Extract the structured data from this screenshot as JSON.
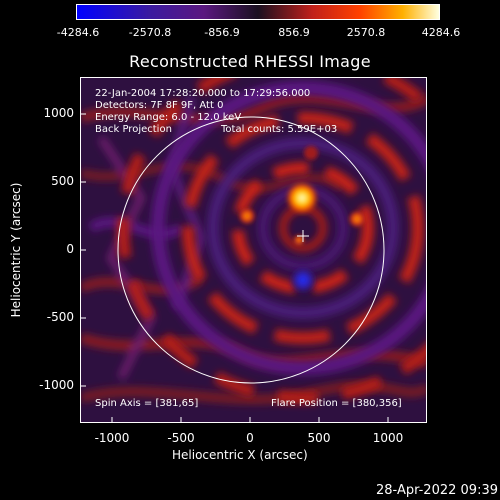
{
  "colorbar": {
    "ticks": [
      "-4284.6",
      "-2570.8",
      "-856.9",
      "856.9",
      "2570.8",
      "4284.6"
    ]
  },
  "title": "Reconstructed RHESSI Image",
  "info": {
    "line1": "22-Jan-2004 17:28:20.000 to 17:29:56.000",
    "line2": "Detectors: 7F 8F 9F, Att 0",
    "line3": "Energy Range: 6.0 - 12.0 keV",
    "line4_left": "Back Projection",
    "line4_right": "Total counts: 5.59E+03"
  },
  "footer": {
    "spin_axis": "Spin Axis = [381,65]",
    "flare_position": "Flare Position = [380,356]"
  },
  "axes": {
    "xlabel": "Heliocentric X (arcsec)",
    "ylabel": "Heliocentric Y (arcsec)",
    "xticks": [
      "-1000",
      "-500",
      "0",
      "500",
      "1000"
    ],
    "yticks": [
      "1000",
      "500",
      "0",
      "-500",
      "-1000"
    ]
  },
  "datestamp": "28-Apr-2022 09:39"
}
